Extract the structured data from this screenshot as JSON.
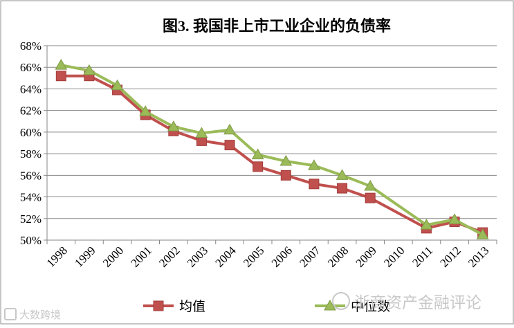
{
  "chart_data": {
    "type": "line",
    "title": "图3. 我国非上市工业企业的负债率",
    "categories": [
      "1998",
      "1999",
      "2000",
      "2001",
      "2002",
      "2003",
      "2004",
      "2005",
      "2006",
      "2007",
      "2008",
      "2009",
      "2010",
      "2011",
      "2012",
      "2013"
    ],
    "ylim": [
      0.5,
      0.68
    ],
    "yticks": [
      "50%",
      "52%",
      "54%",
      "56%",
      "58%",
      "60%",
      "62%",
      "64%",
      "66%",
      "68%"
    ],
    "grid": true,
    "legend_position": "bottom",
    "series": [
      {
        "name": "均值",
        "color": "#c0504d",
        "marker": "square",
        "values": [
          0.652,
          0.652,
          0.639,
          0.616,
          0.601,
          0.592,
          0.588,
          0.568,
          0.56,
          0.552,
          0.548,
          0.539,
          null,
          0.511,
          0.517,
          0.507
        ]
      },
      {
        "name": "中位数",
        "color": "#9bbb59",
        "marker": "triangle",
        "values": [
          0.662,
          0.657,
          0.643,
          0.619,
          0.605,
          0.599,
          0.602,
          0.579,
          0.573,
          0.569,
          0.56,
          0.55,
          null,
          0.514,
          0.519,
          0.505
        ]
      }
    ]
  },
  "watermarks": {
    "right": "浙商资产金融评论",
    "left": "大数跨境"
  }
}
